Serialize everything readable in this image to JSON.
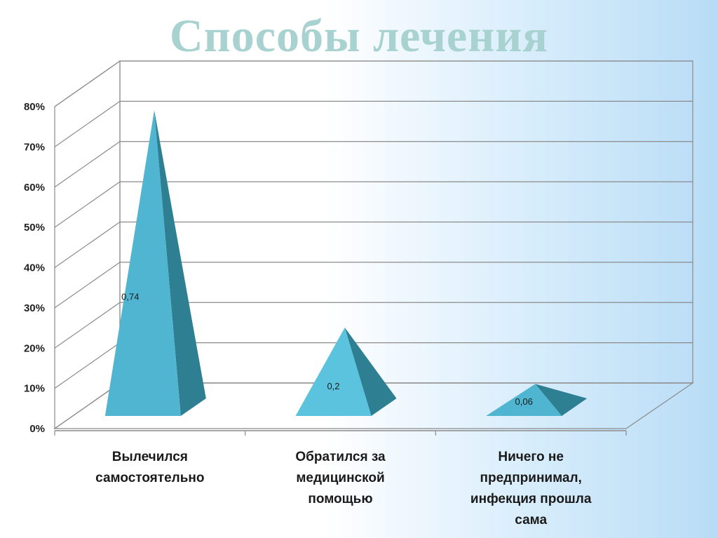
{
  "slide": {
    "title": "Способы лечения"
  },
  "chart_data": {
    "type": "bar",
    "bar_shape": "pyramid",
    "view": "3d",
    "title": "",
    "xlabel": "",
    "ylabel": "",
    "ylim": [
      0,
      0.8
    ],
    "y_ticks": [
      "0%",
      "10%",
      "20%",
      "30%",
      "40%",
      "50%",
      "60%",
      "70%",
      "80%"
    ],
    "grid": true,
    "legend": "none",
    "categories": [
      [
        "Вылечился",
        "самостоятельно"
      ],
      [
        "Обратился за",
        "медицинской",
        "помощью"
      ],
      [
        "Ничего не",
        "предпринимал,",
        "инфекция прошла",
        "сама"
      ]
    ],
    "values": [
      0.74,
      0.2,
      0.06
    ],
    "data_labels": [
      "0,74",
      "0,2",
      "0,06"
    ],
    "colors": {
      "front": "#4fb5d0",
      "front_light": "#5cc3df",
      "side": "#2f7f92",
      "grid": "#8a8a8a"
    }
  }
}
